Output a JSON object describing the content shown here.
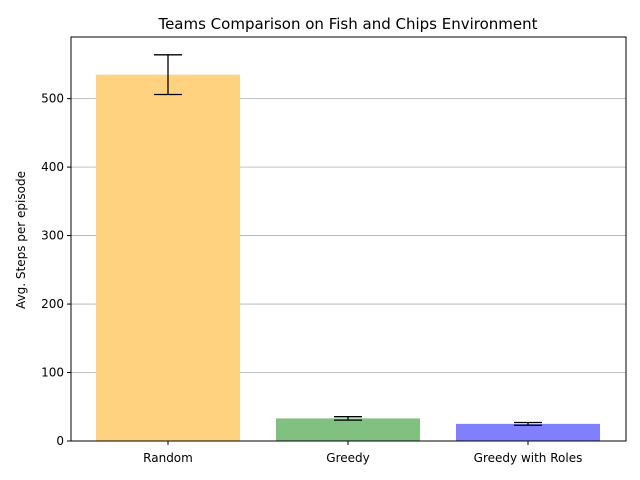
{
  "chart_data": {
    "type": "bar",
    "title": "Teams Comparison on Fish and Chips Environment",
    "xlabel": "",
    "ylabel": "Avg. Steps per episode",
    "categories": [
      "Random",
      "Greedy",
      "Greedy with Roles"
    ],
    "values": [
      535,
      33,
      25
    ],
    "errors": [
      29,
      2.5,
      2
    ],
    "colors": [
      "#ffd280",
      "#80c080",
      "#8080ff"
    ],
    "ylim": [
      0,
      590
    ],
    "yticks": [
      0,
      100,
      200,
      300,
      400,
      500
    ],
    "grid": "y",
    "legend": "none"
  }
}
